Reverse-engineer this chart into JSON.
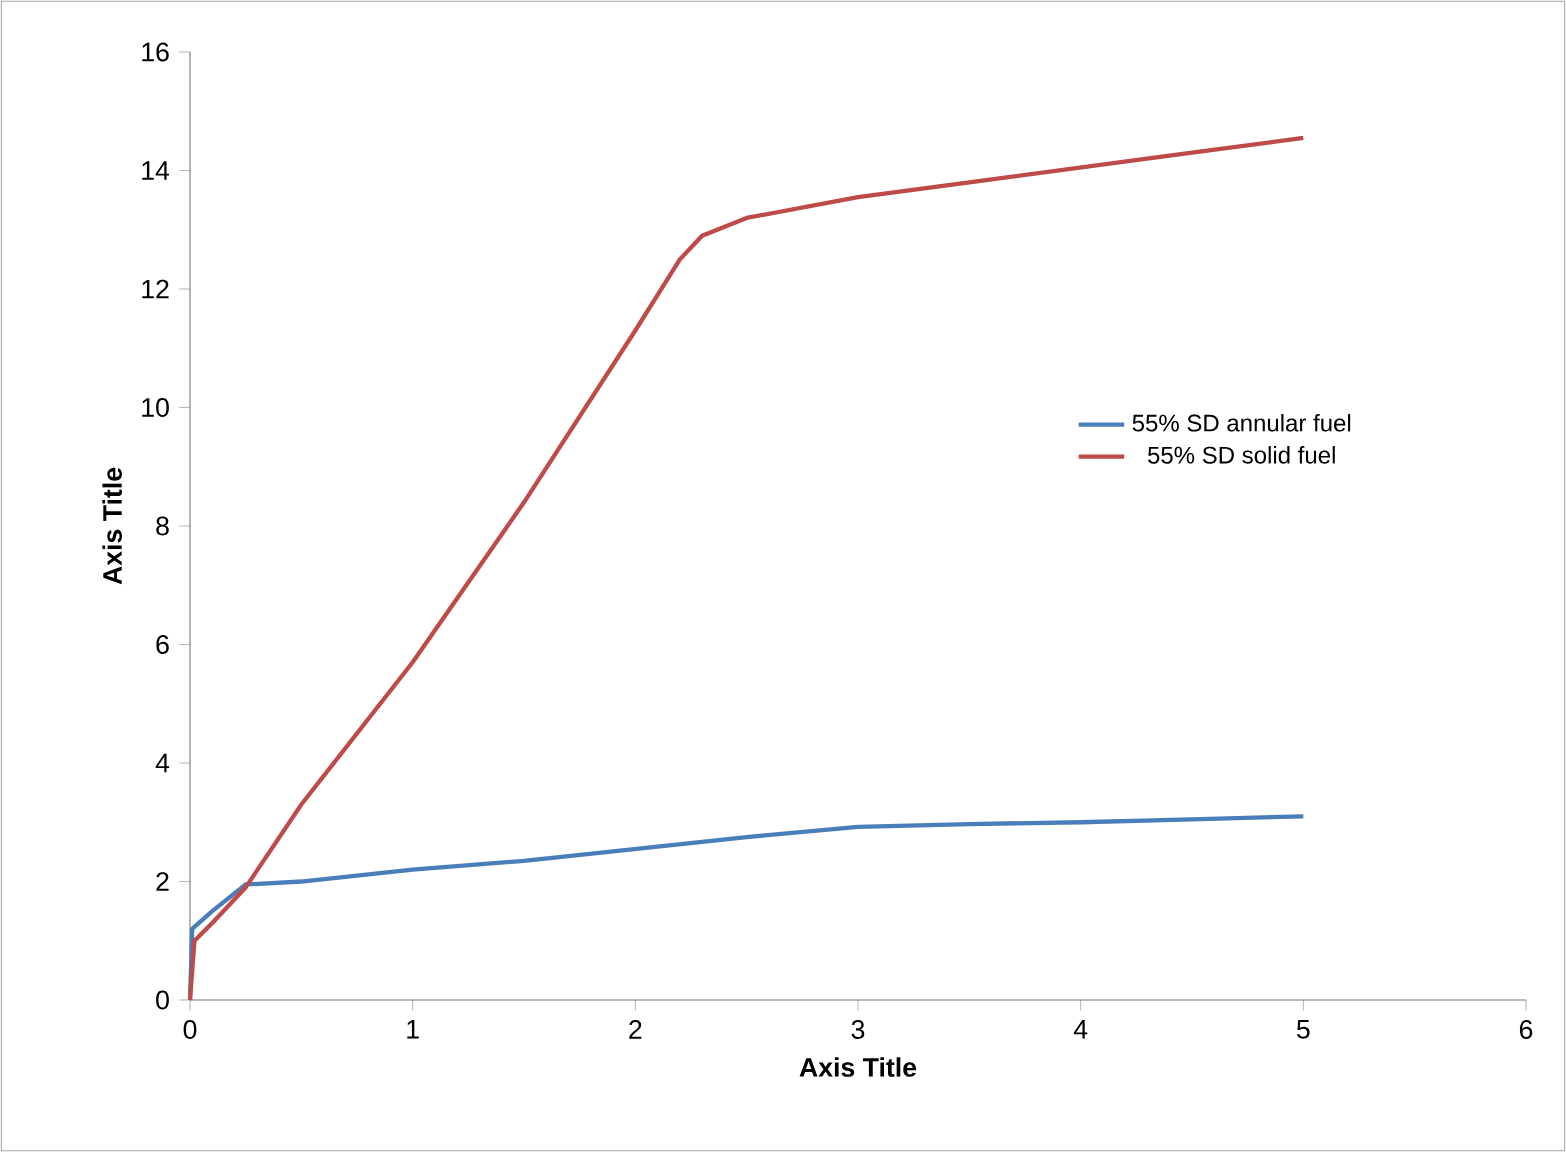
{
  "chart_data": {
    "type": "line",
    "xlabel": "Axis Title",
    "ylabel": "Axis Title",
    "xlim": [
      0,
      6
    ],
    "xticks": [
      0,
      1,
      2,
      3,
      4,
      5,
      6
    ],
    "ylim": [
      0,
      16
    ],
    "yticks": [
      0,
      2,
      4,
      6,
      8,
      10,
      12,
      14,
      16
    ],
    "grid": false,
    "legend": "right",
    "marker": "none",
    "line_style": "solid",
    "series": [
      {
        "name": "55% SD annular fuel",
        "color": "#4a7ebb",
        "x": [
          0,
          0.01,
          0.1,
          0.25,
          0.5,
          1,
          1.5,
          2,
          2.5,
          3,
          3.5,
          4,
          4.5,
          5
        ],
        "values": [
          0,
          1.2,
          1.5,
          1.95,
          2.0,
          2.2,
          2.35,
          2.55,
          2.75,
          2.92,
          2.97,
          3.0,
          3.05,
          3.1
        ]
      },
      {
        "name": "55% SD solid fuel",
        "color": "#be4b48",
        "x": [
          0,
          0.02,
          0.1,
          0.25,
          0.5,
          1,
          1.5,
          2,
          2.2,
          2.3,
          2.5,
          3,
          3.5,
          4,
          4.5,
          5
        ],
        "values": [
          0,
          1.0,
          1.3,
          1.9,
          3.3,
          5.7,
          8.4,
          11.3,
          12.5,
          12.9,
          13.2,
          13.55,
          13.8,
          14.05,
          14.3,
          14.55
        ]
      }
    ]
  }
}
